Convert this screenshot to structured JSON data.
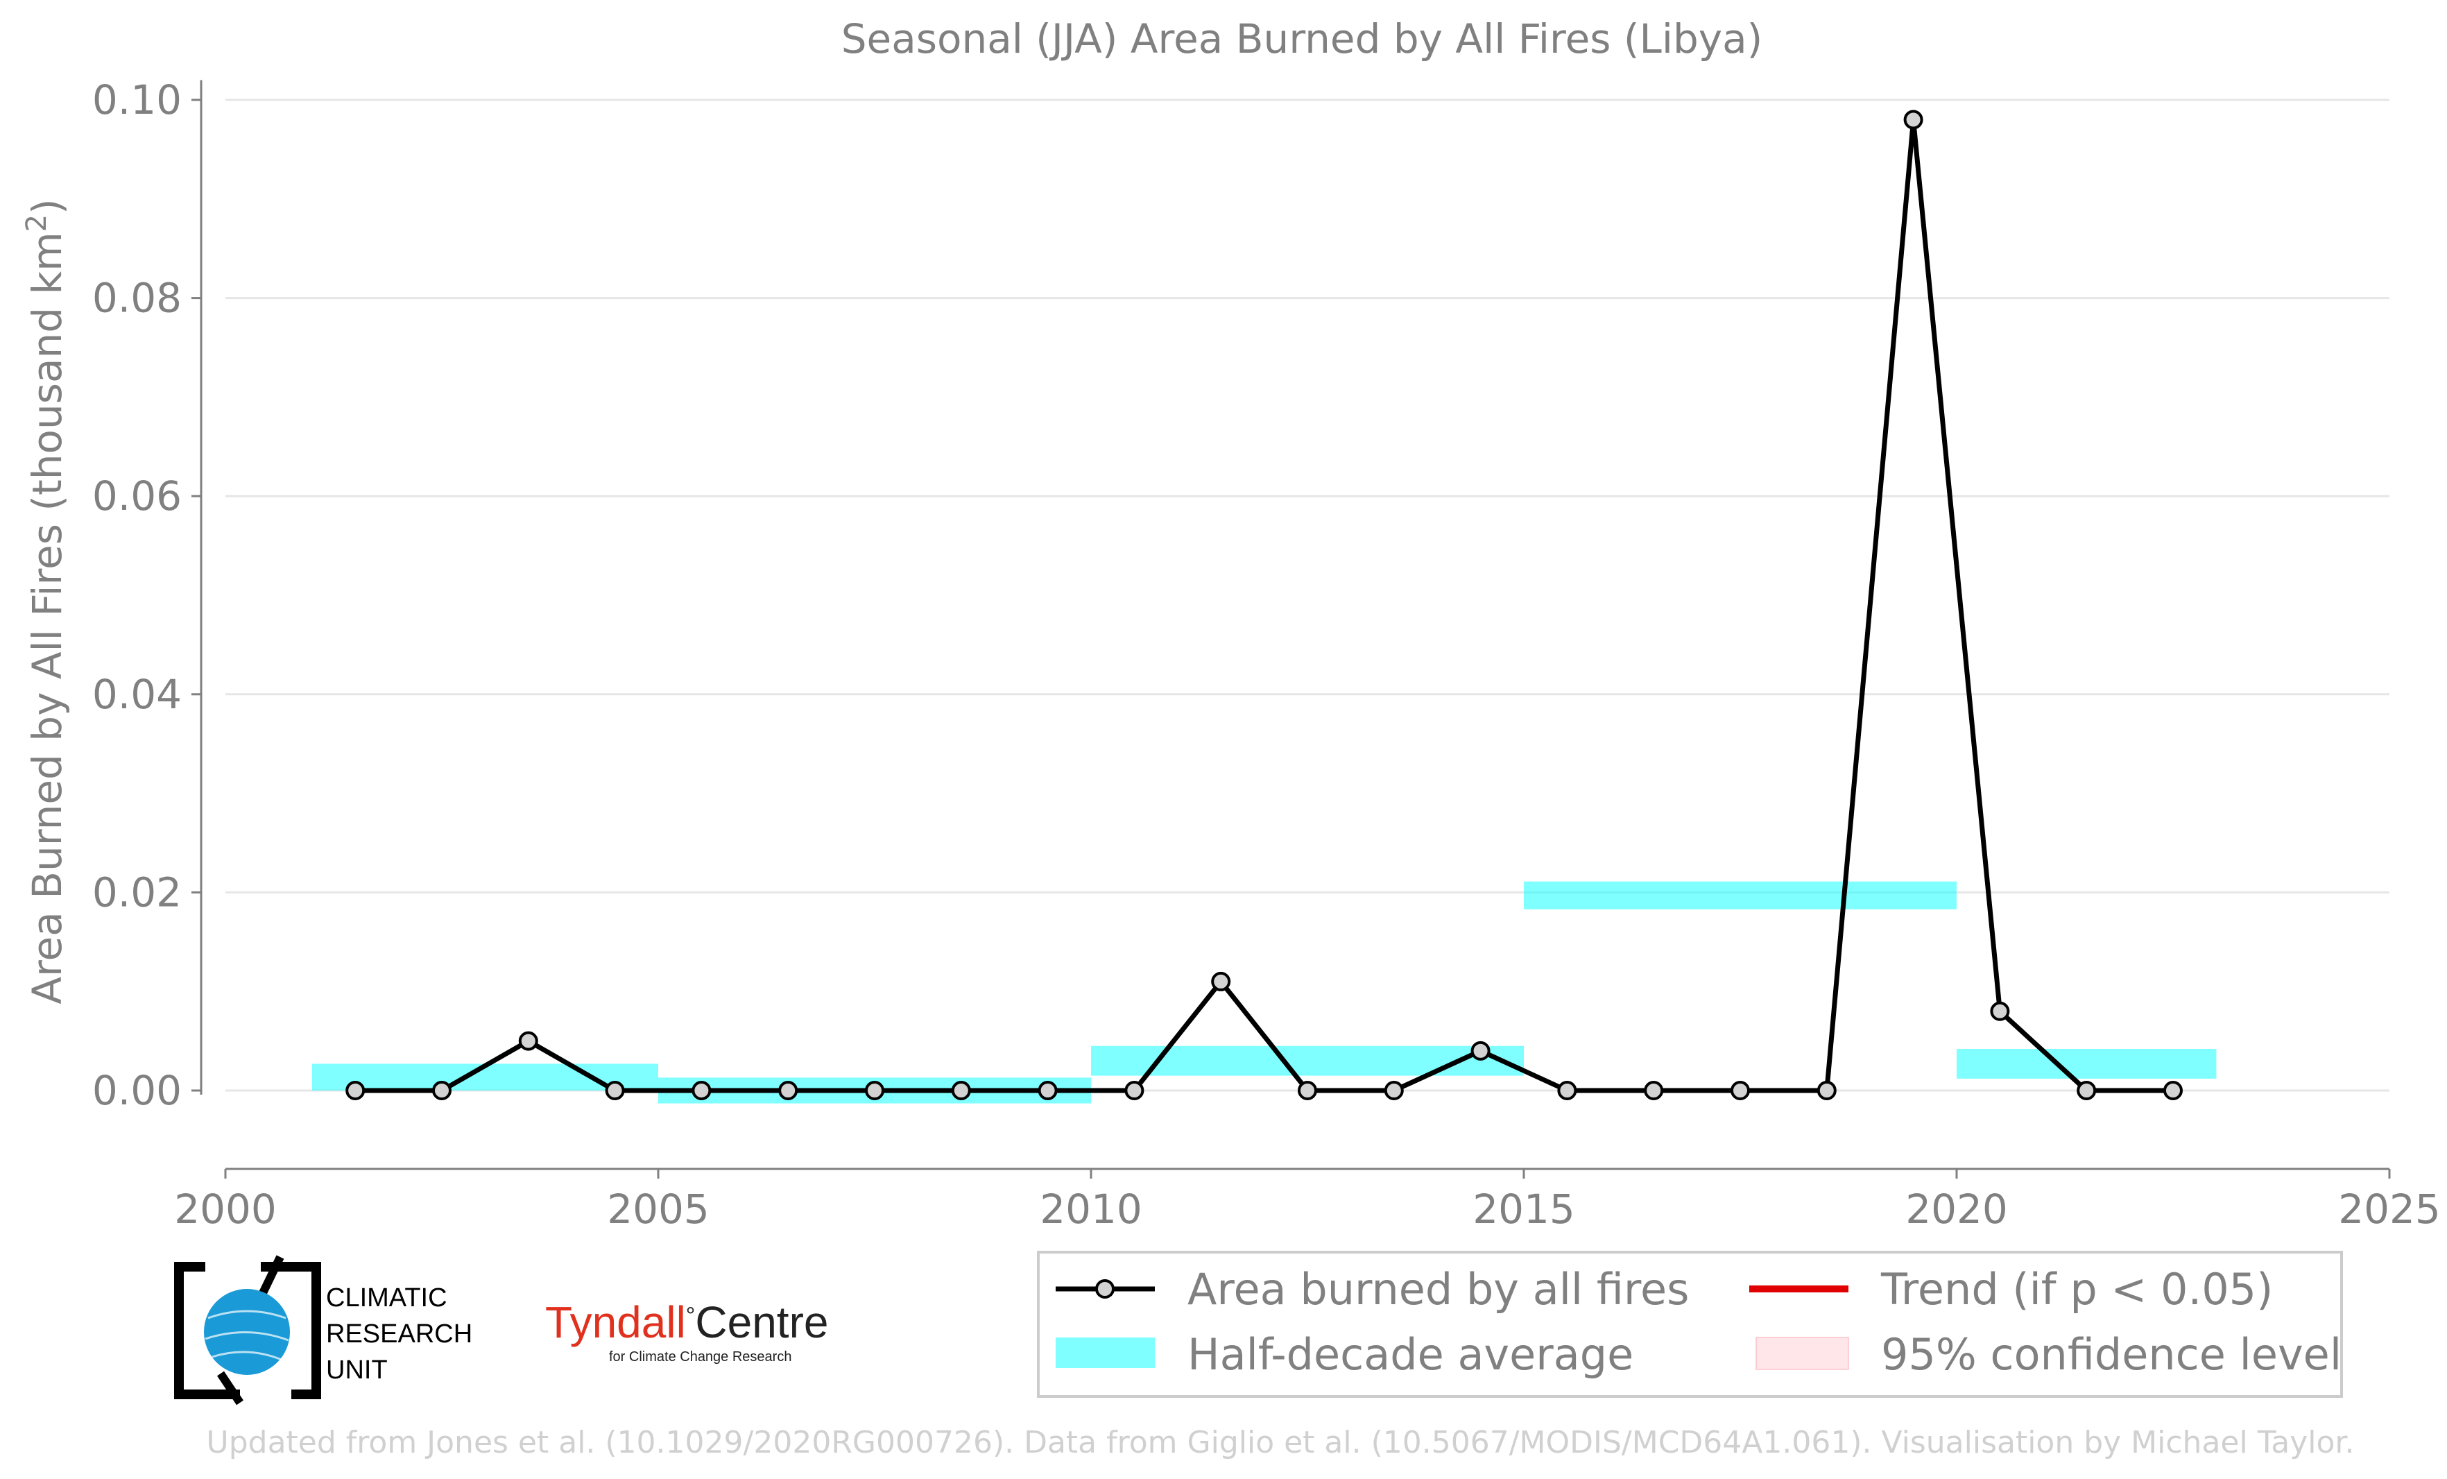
{
  "chart_data": {
    "type": "line",
    "title": "Seasonal (JJA) Area Burned by All Fires (Libya)",
    "ylabel": "Area Burned by All Fires (thousand km",
    "ylabel_sup": "2",
    "ylabel_end": ")",
    "xlabel": "",
    "xlim": [
      2000,
      2025
    ],
    "ylim": [
      -0.008,
      0.102
    ],
    "x_ticks": [
      2000,
      2005,
      2010,
      2015,
      2020,
      2025
    ],
    "x_tick_labels": [
      "2000",
      "2005",
      "2010",
      "2015",
      "2020",
      "2025"
    ],
    "y_ticks": [
      0.0,
      0.02,
      0.04,
      0.06,
      0.08,
      0.1
    ],
    "y_tick_labels": [
      "0.00",
      "0.02",
      "0.04",
      "0.06",
      "0.08",
      "0.10"
    ],
    "grid": "horizontal",
    "legend_position": "bottom-right",
    "series": [
      {
        "name": "Area burned by all fires",
        "color": "#000000",
        "marker_fill": "#d3d3d3",
        "x": [
          2001.5,
          2002.5,
          2003.5,
          2004.5,
          2005.5,
          2006.5,
          2007.5,
          2008.5,
          2009.5,
          2010.5,
          2011.5,
          2012.5,
          2013.5,
          2014.5,
          2015.5,
          2016.5,
          2017.5,
          2018.5,
          2019.5,
          2020.5,
          2021.5,
          2022.5
        ],
        "values": [
          0.0,
          0.0,
          0.005,
          0.0,
          0.0,
          0.0,
          0.0,
          0.0,
          0.0,
          0.0,
          0.011,
          0.0,
          0.0,
          0.004,
          0.0,
          0.0,
          0.0,
          0.0,
          0.098,
          0.008,
          0.0,
          0.0
        ]
      }
    ],
    "half_decade_average": {
      "name": "Half-decade average",
      "color": "#00ffff",
      "opacity": 0.5,
      "periods": [
        {
          "start": 2001,
          "end": 2005,
          "low": 0.0,
          "high": 0.0027
        },
        {
          "start": 2005,
          "end": 2010,
          "low": -0.0013,
          "high": 0.0013
        },
        {
          "start": 2010,
          "end": 2015,
          "low": 0.0015,
          "high": 0.0045
        },
        {
          "start": 2015,
          "end": 2020,
          "low": 0.0183,
          "high": 0.0211
        },
        {
          "start": 2020,
          "end": 2023,
          "low": 0.0012,
          "high": 0.0042
        }
      ]
    },
    "legend": [
      {
        "label": "Area burned by all fires",
        "kind": "line-marker",
        "color": "#000000"
      },
      {
        "label": "Trend (if p < 0.05)",
        "kind": "line",
        "color": "#e00000"
      },
      {
        "label": "Half-decade average",
        "kind": "band",
        "color": "#00ffff"
      },
      {
        "label": "95% confidence level",
        "kind": "band",
        "color": "#ffb6c1"
      }
    ]
  },
  "logos": {
    "cru_line1": "CLIMATIC",
    "cru_line2": "RESEARCH",
    "cru_line3": "UNIT",
    "tyndall_main": "Tyndall",
    "tyndall_deg": "°",
    "tyndall_centre": "Centre",
    "tyndall_sub": "for Climate Change Research"
  },
  "footer": "Updated from Jones et al. (10.1029/2020RG000726). Data from Giglio et al. (10.5067/MODIS/MCD64A1.061). Visualisation by Michael Taylor."
}
